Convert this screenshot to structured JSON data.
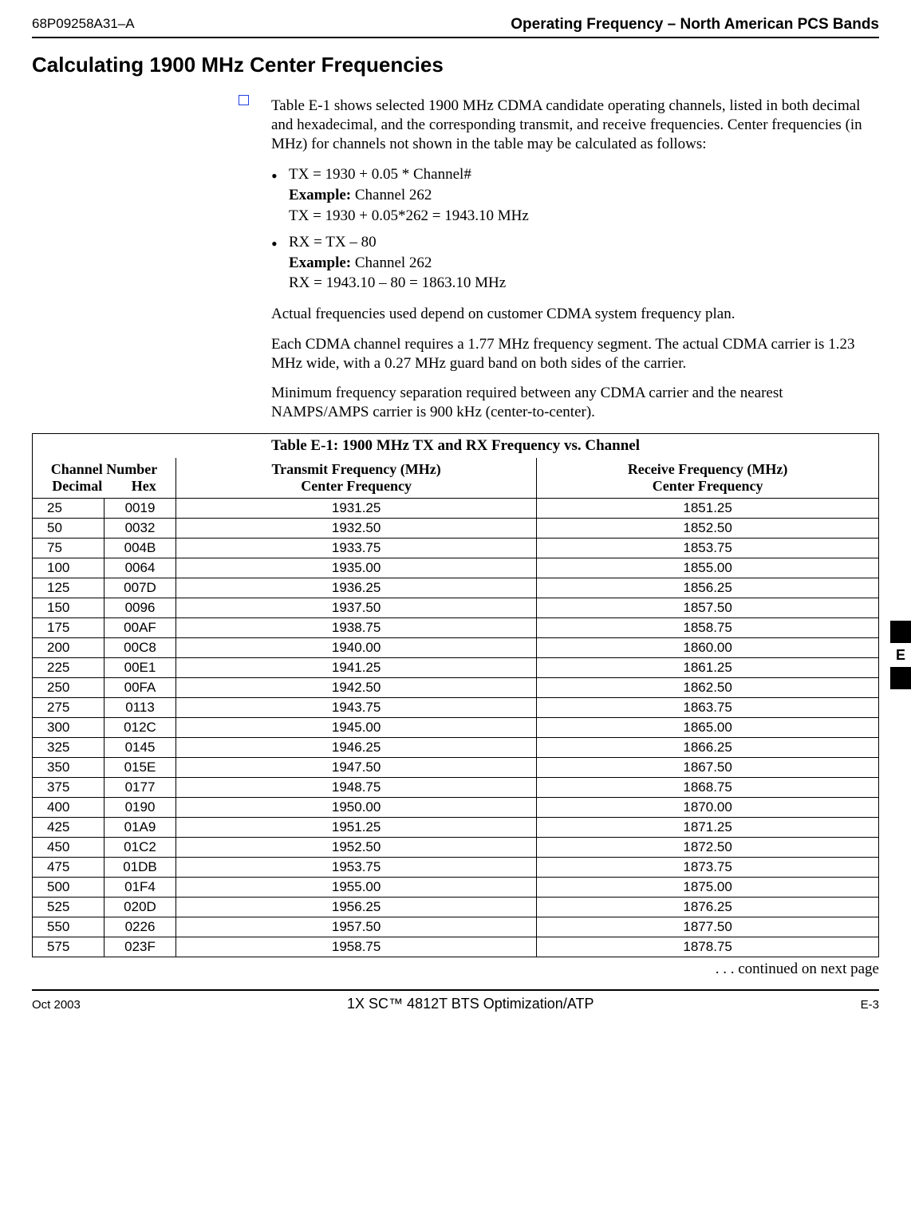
{
  "header": {
    "doc_id": "68P09258A31–A",
    "title": "Operating Frequency – North American PCS Bands"
  },
  "section_title": "Calculating 1900 MHz Center Frequencies",
  "intro_para": "Table E-1 shows selected 1900 MHz CDMA candidate operating channels, listed in both decimal and hexadecimal, and the corresponding transmit, and receive frequencies. Center frequencies (in MHz) for channels not shown in the table may be calculated as follows:",
  "bullets": [
    {
      "formula": "TX = 1930 + 0.05 * Channel#",
      "example_label": "Example:",
      "example_ch": " Channel 262",
      "example_calc": "TX = 1930 + 0.05*262 = 1943.10 MHz"
    },
    {
      "formula": "RX = TX – 80",
      "example_label": "Example:",
      "example_ch": " Channel 262",
      "example_calc": "RX = 1943.10 – 80 = 1863.10 MHz"
    }
  ],
  "para2": "Actual frequencies used depend on customer CDMA system frequency plan.",
  "para3": "Each CDMA channel requires a 1.77 MHz frequency segment. The actual CDMA carrier is 1.23 MHz wide, with a 0.27 MHz guard band on both sides of the carrier.",
  "para4": "Minimum frequency separation required between any CDMA carrier and the nearest NAMPS/AMPS carrier is 900 kHz (center-to-center).",
  "table": {
    "title_bold": "Table E-1:",
    "title_rest": " 1900 MHz TX and RX Frequency vs. Channel",
    "head": {
      "chan_top": "Channel Number",
      "chan_dec": "Decimal",
      "chan_hex": "Hex",
      "tx_top": "Transmit Frequency (MHz)",
      "tx_bot": "Center Frequency",
      "rx_top": "Receive Frequency (MHz)",
      "rx_bot": "Center Frequency"
    },
    "rows": [
      {
        "dec": "25",
        "hex": "0019",
        "tx": "1931.25",
        "rx": "1851.25"
      },
      {
        "dec": "50",
        "hex": "0032",
        "tx": "1932.50",
        "rx": "1852.50"
      },
      {
        "dec": "75",
        "hex": "004B",
        "tx": "1933.75",
        "rx": "1853.75"
      },
      {
        "dec": "100",
        "hex": "0064",
        "tx": "1935.00",
        "rx": "1855.00"
      },
      {
        "dec": "125",
        "hex": "007D",
        "tx": "1936.25",
        "rx": "1856.25"
      },
      {
        "dec": "150",
        "hex": "0096",
        "tx": "1937.50",
        "rx": "1857.50"
      },
      {
        "dec": "175",
        "hex": "00AF",
        "tx": "1938.75",
        "rx": "1858.75"
      },
      {
        "dec": "200",
        "hex": "00C8",
        "tx": "1940.00",
        "rx": "1860.00"
      },
      {
        "dec": "225",
        "hex": "00E1",
        "tx": "1941.25",
        "rx": "1861.25"
      },
      {
        "dec": "250",
        "hex": "00FA",
        "tx": "1942.50",
        "rx": "1862.50"
      },
      {
        "dec": "275",
        "hex": "0113",
        "tx": "1943.75",
        "rx": "1863.75"
      },
      {
        "dec": "300",
        "hex": "012C",
        "tx": "1945.00",
        "rx": "1865.00"
      },
      {
        "dec": "325",
        "hex": "0145",
        "tx": "1946.25",
        "rx": "1866.25"
      },
      {
        "dec": "350",
        "hex": "015E",
        "tx": "1947.50",
        "rx": "1867.50"
      },
      {
        "dec": "375",
        "hex": "0177",
        "tx": "1948.75",
        "rx": "1868.75"
      },
      {
        "dec": "400",
        "hex": "0190",
        "tx": "1950.00",
        "rx": "1870.00"
      },
      {
        "dec": "425",
        "hex": "01A9",
        "tx": "1951.25",
        "rx": "1871.25"
      },
      {
        "dec": "450",
        "hex": "01C2",
        "tx": "1952.50",
        "rx": "1872.50"
      },
      {
        "dec": "475",
        "hex": "01DB",
        "tx": "1953.75",
        "rx": "1873.75"
      },
      {
        "dec": "500",
        "hex": "01F4",
        "tx": "1955.00",
        "rx": "1875.00"
      },
      {
        "dec": "525",
        "hex": "020D",
        "tx": "1956.25",
        "rx": "1876.25"
      },
      {
        "dec": "550",
        "hex": "0226",
        "tx": "1957.50",
        "rx": "1877.50"
      },
      {
        "dec": "575",
        "hex": "023F",
        "tx": "1958.75",
        "rx": "1878.75"
      }
    ]
  },
  "continued": ". . . continued on next page",
  "side_tab_label": "E",
  "footer": {
    "left": "Oct 2003",
    "center": "1X SC™ 4812T BTS Optimization/ATP",
    "right": "E-3"
  }
}
